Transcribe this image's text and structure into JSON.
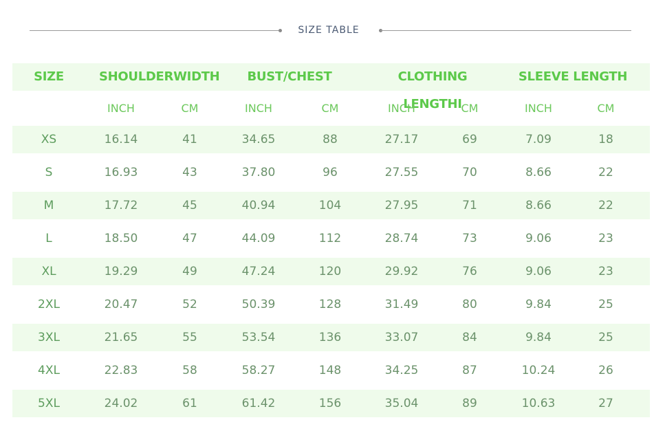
{
  "title": "SIZE TABLE",
  "table": {
    "header": [
      "SIZE",
      "SHOULDERWIDTH",
      "BUST/CHEST",
      "CLOTHING LENGTHI",
      "SLEEVE LENGTH"
    ],
    "units": [
      "INCH",
      "CM",
      "INCH",
      "CM",
      "INCH",
      "CM",
      "INCH",
      "CM"
    ],
    "rows": [
      [
        "XS",
        "16.14",
        "41",
        "34.65",
        "88",
        "27.17",
        "69",
        "7.09",
        "18"
      ],
      [
        "S",
        "16.93",
        "43",
        "37.80",
        "96",
        "27.55",
        "70",
        "8.66",
        "22"
      ],
      [
        "M",
        "17.72",
        "45",
        "40.94",
        "104",
        "27.95",
        "71",
        "8.66",
        "22"
      ],
      [
        "L",
        "18.50",
        "47",
        "44.09",
        "112",
        "28.74",
        "73",
        "9.06",
        "23"
      ],
      [
        "XL",
        "19.29",
        "49",
        "47.24",
        "120",
        "29.92",
        "76",
        "9.06",
        "23"
      ],
      [
        "2XL",
        "20.47",
        "52",
        "50.39",
        "128",
        "31.49",
        "80",
        "9.84",
        "25"
      ],
      [
        "3XL",
        "21.65",
        "55",
        "53.54",
        "136",
        "33.07",
        "84",
        "9.84",
        "25"
      ],
      [
        "4XL",
        "22.83",
        "58",
        "58.27",
        "148",
        "34.25",
        "87",
        "10.24",
        "26"
      ],
      [
        "5XL",
        "24.02",
        "61",
        "61.42",
        "156",
        "35.04",
        "89",
        "10.63",
        "27"
      ]
    ]
  }
}
